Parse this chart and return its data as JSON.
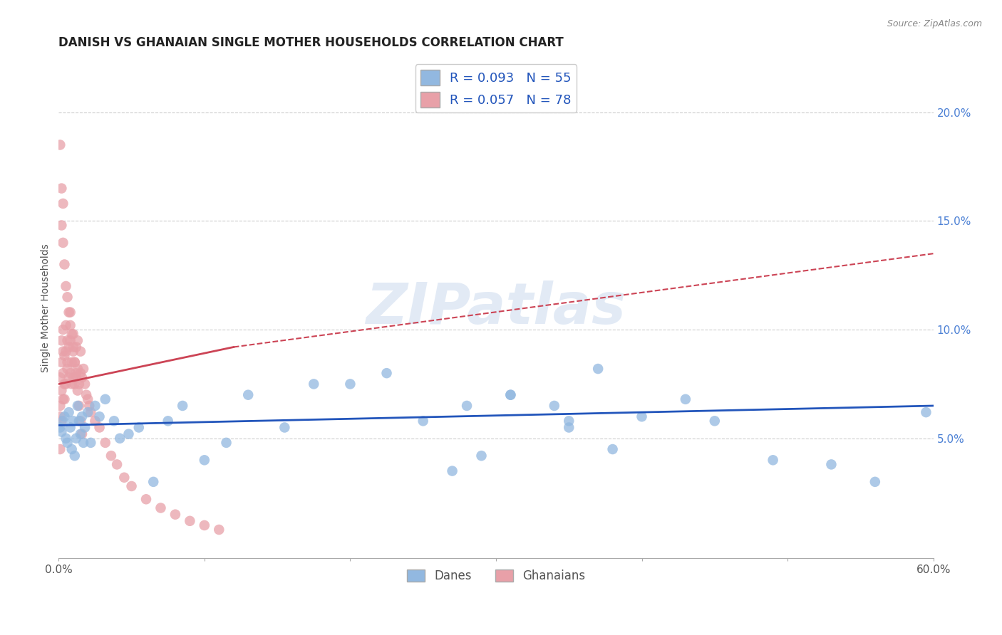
{
  "title": "DANISH VS GHANAIAN SINGLE MOTHER HOUSEHOLDS CORRELATION CHART",
  "source": "Source: ZipAtlas.com",
  "ylabel": "Single Mother Households",
  "xlim": [
    0.0,
    0.6
  ],
  "ylim": [
    -0.005,
    0.225
  ],
  "xticks": [
    0.0,
    0.1,
    0.2,
    0.3,
    0.4,
    0.5,
    0.6
  ],
  "xtick_labels": [
    "0.0%",
    "",
    "",
    "",
    "",
    "",
    "60.0%"
  ],
  "yticks": [
    0.05,
    0.1,
    0.15,
    0.2
  ],
  "ytick_labels": [
    "5.0%",
    "10.0%",
    "15.0%",
    "20.0%"
  ],
  "legend_blue_r": "0.093",
  "legend_blue_n": "55",
  "legend_pink_r": "0.057",
  "legend_pink_n": "78",
  "legend_label_blue": "Danes",
  "legend_label_pink": "Ghanaians",
  "blue_color": "#92b8e0",
  "pink_color": "#e8a0a8",
  "blue_line_color": "#2255bb",
  "pink_line_color": "#cc4455",
  "watermark_text": "ZIPatlas",
  "background_color": "#ffffff",
  "grid_color": "#cccccc",
  "danes_x": [
    0.001,
    0.002,
    0.003,
    0.004,
    0.005,
    0.006,
    0.007,
    0.008,
    0.009,
    0.01,
    0.011,
    0.012,
    0.013,
    0.014,
    0.015,
    0.016,
    0.017,
    0.018,
    0.02,
    0.022,
    0.025,
    0.028,
    0.032,
    0.038,
    0.042,
    0.048,
    0.055,
    0.065,
    0.075,
    0.085,
    0.1,
    0.115,
    0.13,
    0.155,
    0.175,
    0.2,
    0.225,
    0.25,
    0.28,
    0.31,
    0.34,
    0.37,
    0.31,
    0.35,
    0.4,
    0.43,
    0.49,
    0.53,
    0.27,
    0.29,
    0.35,
    0.38,
    0.45,
    0.56,
    0.595
  ],
  "danes_y": [
    0.055,
    0.053,
    0.058,
    0.06,
    0.05,
    0.048,
    0.062,
    0.055,
    0.045,
    0.058,
    0.042,
    0.05,
    0.065,
    0.058,
    0.052,
    0.06,
    0.048,
    0.055,
    0.062,
    0.048,
    0.065,
    0.06,
    0.068,
    0.058,
    0.05,
    0.052,
    0.055,
    0.03,
    0.058,
    0.065,
    0.04,
    0.048,
    0.07,
    0.055,
    0.075,
    0.075,
    0.08,
    0.058,
    0.065,
    0.07,
    0.065,
    0.082,
    0.07,
    0.058,
    0.06,
    0.068,
    0.04,
    0.038,
    0.035,
    0.042,
    0.055,
    0.045,
    0.058,
    0.03,
    0.062
  ],
  "ghanaians_x": [
    0.001,
    0.001,
    0.001,
    0.001,
    0.002,
    0.002,
    0.002,
    0.002,
    0.003,
    0.003,
    0.003,
    0.003,
    0.004,
    0.004,
    0.004,
    0.005,
    0.005,
    0.005,
    0.006,
    0.006,
    0.006,
    0.007,
    0.007,
    0.008,
    0.008,
    0.008,
    0.009,
    0.009,
    0.01,
    0.01,
    0.01,
    0.011,
    0.011,
    0.012,
    0.012,
    0.013,
    0.013,
    0.014,
    0.015,
    0.015,
    0.016,
    0.017,
    0.018,
    0.019,
    0.02,
    0.021,
    0.022,
    0.025,
    0.028,
    0.032,
    0.036,
    0.04,
    0.045,
    0.05,
    0.06,
    0.07,
    0.08,
    0.09,
    0.1,
    0.11,
    0.001,
    0.002,
    0.002,
    0.003,
    0.003,
    0.004,
    0.005,
    0.006,
    0.007,
    0.008,
    0.009,
    0.01,
    0.011,
    0.012,
    0.013,
    0.014,
    0.015,
    0.016
  ],
  "ghanaians_y": [
    0.045,
    0.065,
    0.078,
    0.06,
    0.058,
    0.072,
    0.085,
    0.095,
    0.068,
    0.08,
    0.09,
    0.1,
    0.075,
    0.088,
    0.068,
    0.075,
    0.09,
    0.102,
    0.085,
    0.095,
    0.082,
    0.078,
    0.092,
    0.08,
    0.095,
    0.108,
    0.075,
    0.085,
    0.078,
    0.09,
    0.098,
    0.075,
    0.085,
    0.08,
    0.092,
    0.082,
    0.095,
    0.075,
    0.08,
    0.09,
    0.078,
    0.082,
    0.075,
    0.07,
    0.068,
    0.065,
    0.062,
    0.058,
    0.055,
    0.048,
    0.042,
    0.038,
    0.032,
    0.028,
    0.022,
    0.018,
    0.015,
    0.012,
    0.01,
    0.008,
    0.185,
    0.165,
    0.148,
    0.158,
    0.14,
    0.13,
    0.12,
    0.115,
    0.108,
    0.102,
    0.098,
    0.092,
    0.085,
    0.078,
    0.072,
    0.065,
    0.058,
    0.052
  ],
  "blue_trend_x0": 0.0,
  "blue_trend_y0": 0.056,
  "blue_trend_x1": 0.6,
  "blue_trend_y1": 0.065,
  "pink_trend_solid_x0": 0.0,
  "pink_trend_solid_y0": 0.075,
  "pink_trend_solid_x1": 0.12,
  "pink_trend_solid_y1": 0.092,
  "pink_trend_dash_x0": 0.12,
  "pink_trend_dash_y0": 0.092,
  "pink_trend_dash_x1": 0.6,
  "pink_trend_dash_y1": 0.135
}
